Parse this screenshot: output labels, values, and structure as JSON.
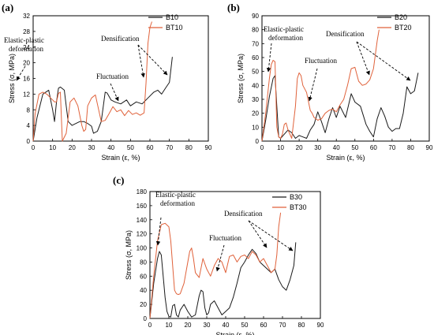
{
  "colors": {
    "series_black": "#1a1a1a",
    "series_orange": "#e0623b",
    "axis": "#000000"
  },
  "chart_data": [
    {
      "panel_label": "(a)",
      "type": "line",
      "xlabel": "Strain (ε, %)",
      "ylabel": "Stress (σ, MPa)",
      "xlim": [
        0,
        90
      ],
      "ylim": [
        0,
        32
      ],
      "xticks": [
        0,
        10,
        20,
        30,
        40,
        50,
        60,
        70,
        80,
        90
      ],
      "yticks": [
        0,
        4,
        8,
        12,
        16,
        20,
        24,
        28,
        32
      ],
      "legend_position": "top-right",
      "series": [
        {
          "name": "B10",
          "color": "#1a1a1a",
          "x": [
            0,
            2,
            5,
            8,
            10,
            11,
            12,
            13,
            14,
            16,
            17,
            18,
            20,
            22,
            24,
            26,
            28,
            30,
            31,
            33,
            35,
            37,
            38,
            40,
            42,
            45,
            48,
            50,
            53,
            56,
            59,
            62,
            64,
            66,
            68,
            70,
            71.5
          ],
          "y": [
            0,
            6,
            12,
            13,
            8,
            5,
            10,
            13.5,
            13.8,
            13,
            9,
            5,
            4,
            4.5,
            5,
            5,
            4.5,
            3.8,
            2,
            2.5,
            5,
            12.5,
            12.3,
            10.5,
            10,
            9.5,
            10.5,
            9,
            10,
            9.5,
            11,
            12.5,
            13,
            12,
            13.5,
            15,
            21.5
          ]
        },
        {
          "name": "BT10",
          "color": "#e0623b",
          "x": [
            0,
            1,
            3,
            5,
            7,
            9,
            10,
            11,
            12,
            13,
            14,
            15,
            17,
            19,
            21,
            23,
            25,
            26,
            27,
            28,
            30,
            32,
            33,
            35,
            37,
            39,
            41,
            43,
            45,
            47,
            49,
            51,
            53,
            55,
            57,
            58,
            59,
            60,
            61
          ],
          "y": [
            0,
            7,
            12,
            12.5,
            12,
            11,
            10.5,
            10,
            10,
            12.2,
            12.5,
            0,
            2,
            10,
            11,
            9,
            4,
            2.5,
            3,
            9,
            11,
            11.8,
            9.5,
            5,
            5.3,
            7,
            8.8,
            7.5,
            8,
            6.5,
            7.8,
            6.8,
            7.2,
            6.6,
            7.2,
            15,
            25,
            29,
            30.5
          ]
        }
      ],
      "annotations": [
        "Elastic-plastic\ndeformation",
        "Fluctuation",
        "Densification"
      ]
    },
    {
      "panel_label": "(b)",
      "type": "line",
      "xlabel": "Strain (ε, %)",
      "ylabel": "Stress (σ, MPa)",
      "xlim": [
        0,
        90
      ],
      "ylim": [
        0,
        90
      ],
      "xticks": [
        0,
        10,
        20,
        30,
        40,
        50,
        60,
        70,
        80,
        90
      ],
      "yticks": [
        0,
        10,
        20,
        30,
        40,
        50,
        60,
        70,
        80,
        90
      ],
      "legend_position": "top-right",
      "series": [
        {
          "name": "B20",
          "color": "#1a1a1a",
          "x": [
            0,
            2,
            4,
            6,
            7,
            8,
            9,
            10,
            12,
            14,
            16,
            18,
            20,
            22,
            24,
            26,
            28,
            30,
            32,
            34,
            36,
            38,
            40,
            42,
            45,
            48,
            50,
            53,
            56,
            58,
            60,
            62,
            64,
            66,
            68,
            70,
            72,
            74,
            76,
            78,
            80,
            82,
            84
          ],
          "y": [
            0,
            15,
            32,
            45,
            47,
            25,
            3,
            2,
            5,
            8,
            6,
            2,
            4,
            3,
            2,
            8,
            12,
            21,
            14,
            6,
            16,
            24,
            17,
            25,
            17,
            34,
            28,
            25,
            12,
            7,
            3,
            16,
            24,
            18,
            10,
            7,
            9,
            9,
            20,
            39,
            34,
            36,
            49
          ]
        },
        {
          "name": "BT20",
          "color": "#e0623b",
          "x": [
            0,
            2,
            4,
            5,
            6,
            7,
            8,
            9,
            10,
            11,
            12,
            13,
            14,
            16,
            18,
            19,
            20,
            21,
            22,
            24,
            26,
            27,
            28,
            30,
            32,
            34,
            36,
            38,
            40,
            42,
            44,
            46,
            48,
            50,
            52,
            54,
            56,
            58,
            60,
            62,
            63
          ],
          "y": [
            0,
            20,
            45,
            55,
            58,
            57,
            10,
            3,
            2,
            5,
            12,
            13,
            8,
            2,
            25,
            45,
            49,
            47,
            40,
            35,
            22,
            20,
            17,
            15,
            16,
            20,
            22,
            23,
            21,
            26,
            30,
            40,
            52,
            53,
            43,
            40,
            41,
            44,
            52,
            72,
            80
          ]
        }
      ],
      "annotations": [
        "Elastic-plastic\ndeformation",
        "Fluctuation",
        "Densification"
      ]
    },
    {
      "panel_label": "(c)",
      "type": "line",
      "xlabel": "Strain (ε, %)",
      "ylabel": "Stress (σ, MPa)",
      "xlim": [
        0,
        90
      ],
      "ylim": [
        0,
        180
      ],
      "xticks": [
        0,
        10,
        20,
        30,
        40,
        50,
        60,
        70,
        80,
        90
      ],
      "yticks": [
        0,
        20,
        40,
        60,
        80,
        100,
        120,
        140,
        160,
        180
      ],
      "legend_position": "top-right",
      "series": [
        {
          "name": "B30",
          "color": "#1a1a1a",
          "x": [
            0,
            2,
            4,
            5,
            6,
            7,
            8,
            9,
            10,
            11,
            12,
            13,
            14,
            15,
            16,
            18,
            20,
            22,
            24,
            26,
            27,
            28,
            29,
            30,
            31,
            32,
            34,
            36,
            38,
            40,
            42,
            44,
            46,
            48,
            50,
            52,
            54,
            56,
            58,
            60,
            62,
            64,
            66,
            68,
            70,
            72,
            74,
            76,
            77
          ],
          "y": [
            0,
            50,
            85,
            95,
            90,
            60,
            30,
            10,
            3,
            2,
            18,
            20,
            5,
            2,
            12,
            20,
            10,
            2,
            5,
            32,
            40,
            38,
            15,
            5,
            8,
            20,
            25,
            15,
            5,
            10,
            15,
            30,
            50,
            72,
            80,
            90,
            98,
            92,
            80,
            75,
            70,
            65,
            70,
            55,
            45,
            40,
            55,
            75,
            108
          ]
        },
        {
          "name": "BT30",
          "color": "#e0623b",
          "x": [
            0,
            2,
            4,
            6,
            8,
            10,
            11,
            12,
            13,
            14,
            15,
            16,
            18,
            20,
            21,
            22,
            23,
            24,
            26,
            28,
            30,
            32,
            34,
            36,
            38,
            40,
            42,
            44,
            46,
            48,
            50,
            52,
            54,
            56,
            58,
            60,
            62,
            64,
            66,
            67,
            68,
            69
          ],
          "y": [
            0,
            60,
            110,
            133,
            135,
            130,
            110,
            75,
            40,
            35,
            34,
            35,
            50,
            80,
            95,
            100,
            85,
            65,
            58,
            85,
            70,
            60,
            75,
            85,
            80,
            65,
            88,
            90,
            80,
            88,
            90,
            85,
            95,
            90,
            80,
            85,
            75,
            65,
            70,
            90,
            130,
            150
          ]
        }
      ],
      "annotations": [
        "Elastic-plastic\ndeformation",
        "Fluctuation",
        "Densification"
      ]
    }
  ]
}
